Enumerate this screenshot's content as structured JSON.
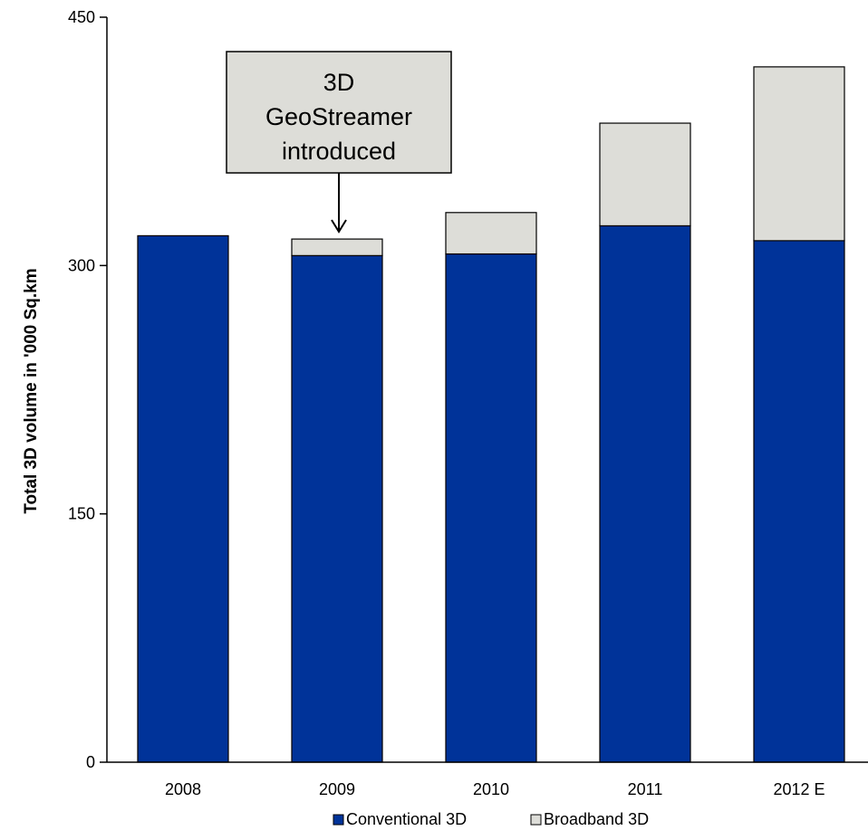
{
  "chart_data": {
    "type": "bar",
    "stacked": true,
    "title": "",
    "xlabel": "",
    "ylabel": "Total 3D volume in '000 Sq.km",
    "ylim": [
      0,
      450
    ],
    "yticks": [
      0,
      150,
      300,
      450
    ],
    "categories": [
      "2008",
      "2009",
      "2010",
      "2011",
      "2012 E"
    ],
    "series": [
      {
        "name": "Conventional 3D",
        "color": "#003399",
        "values": [
          318,
          306,
          307,
          324,
          315
        ]
      },
      {
        "name": "Broadband 3D",
        "color": "#DDDDD8",
        "values": [
          0,
          10,
          25,
          62,
          105
        ]
      }
    ],
    "legend_position": "bottom",
    "annotation": {
      "lines": [
        "3D",
        "GeoStreamer",
        "introduced"
      ],
      "target_category": "2009"
    }
  }
}
